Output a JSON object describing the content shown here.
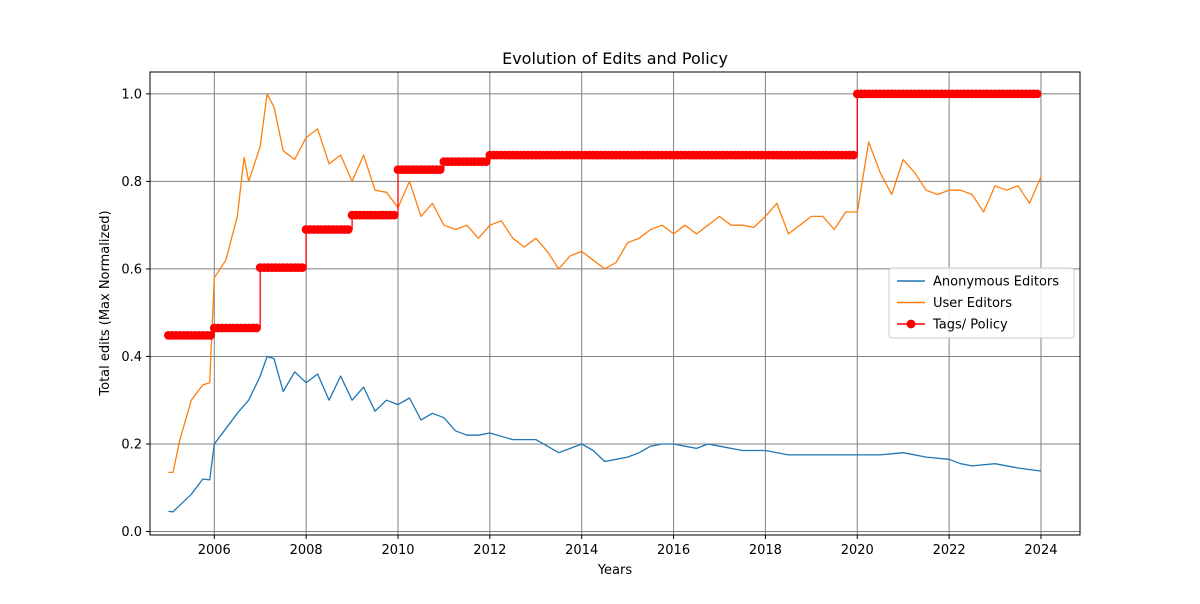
{
  "chart_data": {
    "type": "line",
    "title": "Evolution of Edits and Policy",
    "xlabel": "Years",
    "ylabel": "Total edits (Max Normalized)",
    "xlim": [
      2004.6,
      2024.85
    ],
    "ylim": [
      -0.008,
      1.05
    ],
    "grid": true,
    "legend_position": "center-right",
    "x_ticks": [
      2006,
      2008,
      2010,
      2012,
      2014,
      2016,
      2018,
      2020,
      2022,
      2024
    ],
    "x_tick_labels": [
      "2006",
      "2008",
      "2010",
      "2012",
      "2014",
      "2016",
      "2018",
      "2020",
      "2022",
      "2024"
    ],
    "y_ticks": [
      0.0,
      0.2,
      0.4,
      0.6,
      0.8,
      1.0
    ],
    "y_tick_labels": [
      "0.0",
      "0.2",
      "0.4",
      "0.6",
      "0.8",
      "1.0"
    ],
    "series": [
      {
        "name": "Anonymous Editors",
        "color": "#1f77b4",
        "marker": "none",
        "points": [
          [
            2005.0,
            0.046
          ],
          [
            2005.1,
            0.045
          ],
          [
            2005.25,
            0.06
          ],
          [
            2005.5,
            0.085
          ],
          [
            2005.75,
            0.12
          ],
          [
            2005.9,
            0.118
          ],
          [
            2006.0,
            0.2
          ],
          [
            2006.25,
            0.235
          ],
          [
            2006.5,
            0.27
          ],
          [
            2006.75,
            0.3
          ],
          [
            2007.0,
            0.355
          ],
          [
            2007.15,
            0.4
          ],
          [
            2007.3,
            0.395
          ],
          [
            2007.5,
            0.32
          ],
          [
            2007.75,
            0.365
          ],
          [
            2008.0,
            0.34
          ],
          [
            2008.25,
            0.36
          ],
          [
            2008.5,
            0.3
          ],
          [
            2008.75,
            0.355
          ],
          [
            2009.0,
            0.3
          ],
          [
            2009.25,
            0.33
          ],
          [
            2009.5,
            0.275
          ],
          [
            2009.75,
            0.3
          ],
          [
            2010.0,
            0.29
          ],
          [
            2010.25,
            0.305
          ],
          [
            2010.5,
            0.255
          ],
          [
            2010.75,
            0.27
          ],
          [
            2011.0,
            0.26
          ],
          [
            2011.25,
            0.23
          ],
          [
            2011.5,
            0.22
          ],
          [
            2011.75,
            0.22
          ],
          [
            2012.0,
            0.225
          ],
          [
            2012.5,
            0.21
          ],
          [
            2013.0,
            0.21
          ],
          [
            2013.5,
            0.18
          ],
          [
            2013.75,
            0.19
          ],
          [
            2014.0,
            0.2
          ],
          [
            2014.25,
            0.185
          ],
          [
            2014.5,
            0.16
          ],
          [
            2014.75,
            0.165
          ],
          [
            2015.0,
            0.17
          ],
          [
            2015.25,
            0.18
          ],
          [
            2015.5,
            0.195
          ],
          [
            2015.75,
            0.2
          ],
          [
            2016.0,
            0.2
          ],
          [
            2016.25,
            0.195
          ],
          [
            2016.5,
            0.19
          ],
          [
            2016.75,
            0.2
          ],
          [
            2017.0,
            0.195
          ],
          [
            2017.5,
            0.185
          ],
          [
            2018.0,
            0.185
          ],
          [
            2018.5,
            0.175
          ],
          [
            2019.0,
            0.175
          ],
          [
            2019.5,
            0.175
          ],
          [
            2020.0,
            0.175
          ],
          [
            2020.5,
            0.175
          ],
          [
            2021.0,
            0.18
          ],
          [
            2021.5,
            0.17
          ],
          [
            2022.0,
            0.165
          ],
          [
            2022.25,
            0.155
          ],
          [
            2022.5,
            0.15
          ],
          [
            2023.0,
            0.155
          ],
          [
            2023.5,
            0.145
          ],
          [
            2024.0,
            0.138
          ]
        ]
      },
      {
        "name": "User Editors",
        "color": "#ff7f0e",
        "marker": "none",
        "points": [
          [
            2005.0,
            0.135
          ],
          [
            2005.1,
            0.135
          ],
          [
            2005.25,
            0.21
          ],
          [
            2005.5,
            0.3
          ],
          [
            2005.75,
            0.335
          ],
          [
            2005.9,
            0.34
          ],
          [
            2006.0,
            0.58
          ],
          [
            2006.25,
            0.62
          ],
          [
            2006.5,
            0.72
          ],
          [
            2006.65,
            0.855
          ],
          [
            2006.75,
            0.8
          ],
          [
            2007.0,
            0.88
          ],
          [
            2007.15,
            1.0
          ],
          [
            2007.3,
            0.97
          ],
          [
            2007.5,
            0.87
          ],
          [
            2007.75,
            0.85
          ],
          [
            2008.0,
            0.9
          ],
          [
            2008.25,
            0.92
          ],
          [
            2008.5,
            0.84
          ],
          [
            2008.75,
            0.86
          ],
          [
            2009.0,
            0.8
          ],
          [
            2009.25,
            0.86
          ],
          [
            2009.5,
            0.78
          ],
          [
            2009.75,
            0.775
          ],
          [
            2010.0,
            0.74
          ],
          [
            2010.25,
            0.8
          ],
          [
            2010.5,
            0.72
          ],
          [
            2010.75,
            0.75
          ],
          [
            2011.0,
            0.7
          ],
          [
            2011.25,
            0.69
          ],
          [
            2011.5,
            0.7
          ],
          [
            2011.75,
            0.67
          ],
          [
            2012.0,
            0.7
          ],
          [
            2012.25,
            0.71
          ],
          [
            2012.5,
            0.67
          ],
          [
            2012.75,
            0.65
          ],
          [
            2013.0,
            0.67
          ],
          [
            2013.25,
            0.64
          ],
          [
            2013.5,
            0.6
          ],
          [
            2013.75,
            0.63
          ],
          [
            2014.0,
            0.64
          ],
          [
            2014.25,
            0.62
          ],
          [
            2014.5,
            0.6
          ],
          [
            2014.75,
            0.615
          ],
          [
            2015.0,
            0.66
          ],
          [
            2015.25,
            0.67
          ],
          [
            2015.5,
            0.69
          ],
          [
            2015.75,
            0.7
          ],
          [
            2016.0,
            0.68
          ],
          [
            2016.25,
            0.7
          ],
          [
            2016.5,
            0.68
          ],
          [
            2016.75,
            0.7
          ],
          [
            2017.0,
            0.72
          ],
          [
            2017.25,
            0.7
          ],
          [
            2017.5,
            0.7
          ],
          [
            2017.75,
            0.695
          ],
          [
            2018.0,
            0.72
          ],
          [
            2018.25,
            0.75
          ],
          [
            2018.5,
            0.68
          ],
          [
            2018.75,
            0.7
          ],
          [
            2019.0,
            0.72
          ],
          [
            2019.25,
            0.72
          ],
          [
            2019.5,
            0.69
          ],
          [
            2019.75,
            0.73
          ],
          [
            2020.0,
            0.73
          ],
          [
            2020.25,
            0.89
          ],
          [
            2020.5,
            0.82
          ],
          [
            2020.75,
            0.77
          ],
          [
            2021.0,
            0.85
          ],
          [
            2021.25,
            0.82
          ],
          [
            2021.5,
            0.78
          ],
          [
            2021.75,
            0.77
          ],
          [
            2022.0,
            0.78
          ],
          [
            2022.25,
            0.78
          ],
          [
            2022.5,
            0.77
          ],
          [
            2022.75,
            0.73
          ],
          [
            2023.0,
            0.79
          ],
          [
            2023.25,
            0.78
          ],
          [
            2023.5,
            0.79
          ],
          [
            2023.75,
            0.75
          ],
          [
            2024.0,
            0.81
          ]
        ]
      },
      {
        "name": "Tags/ Policy",
        "color": "#ff0000",
        "marker": "circle",
        "steps": [
          {
            "x0": 2005.0,
            "x1": 2006.0,
            "y": 0.448
          },
          {
            "x0": 2006.0,
            "x1": 2007.0,
            "y": 0.465
          },
          {
            "x0": 2007.0,
            "x1": 2008.0,
            "y": 0.603
          },
          {
            "x0": 2008.0,
            "x1": 2009.0,
            "y": 0.69
          },
          {
            "x0": 2009.0,
            "x1": 2010.0,
            "y": 0.723
          },
          {
            "x0": 2010.0,
            "x1": 2011.0,
            "y": 0.827
          },
          {
            "x0": 2011.0,
            "x1": 2012.0,
            "y": 0.845
          },
          {
            "x0": 2012.0,
            "x1": 2020.0,
            "y": 0.86
          },
          {
            "x0": 2020.0,
            "x1": 2024.0,
            "y": 1.0
          }
        ]
      }
    ]
  }
}
